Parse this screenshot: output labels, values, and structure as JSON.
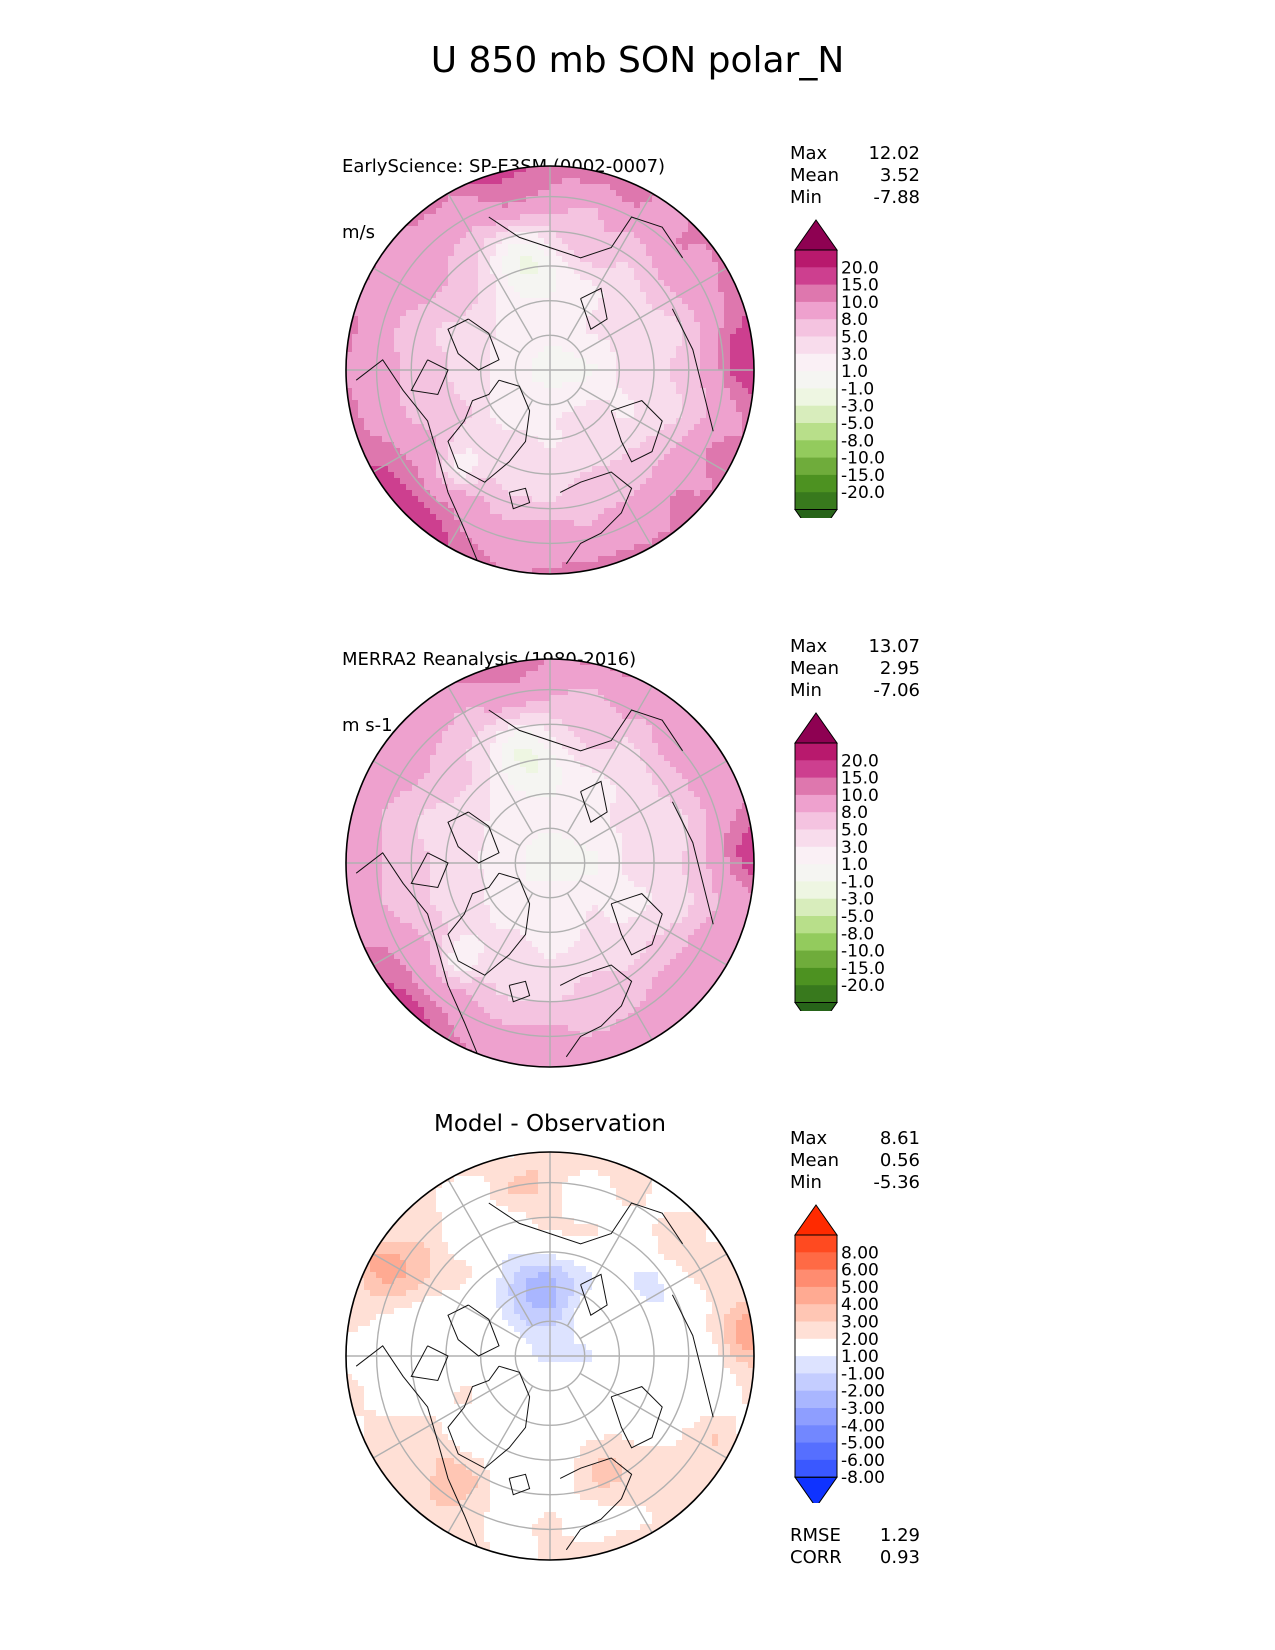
{
  "title": "U 850 mb SON polar_N",
  "panels": [
    {
      "id": "model",
      "title_lines": [
        "EarlyScience: SP-E3SM (0002-0007)",
        "m/s"
      ],
      "centered_title": "",
      "stats": [
        {
          "label": "Max",
          "value": "12.02"
        },
        {
          "label": "Mean",
          "value": "3.52"
        },
        {
          "label": "Min",
          "value": "-7.88"
        }
      ],
      "footer_stats": [],
      "colorbar_labels": [
        "20.0",
        "15.0",
        "10.0",
        "8.0",
        "5.0",
        "3.0",
        "1.0",
        "-1.0",
        "-3.0",
        "-5.0",
        "-8.0",
        "-10.0",
        "-15.0",
        "-20.0"
      ],
      "colorbar_colors": [
        "#8e0152",
        "#b8196d",
        "#cd3f8f",
        "#de77ae",
        "#eea1ce",
        "#f4c3e0",
        "#f8dcec",
        "#faf0f5",
        "#f5f5f2",
        "#eef6e2",
        "#d8edbc",
        "#b8df8a",
        "#93cb5d",
        "#6fac3b",
        "#4d9221",
        "#38791d",
        "#276419"
      ],
      "field_type": "model"
    },
    {
      "id": "obs",
      "title_lines": [
        "MERRA2 Reanalysis (1980-2016)",
        "m s-1"
      ],
      "centered_title": "",
      "stats": [
        {
          "label": "Max",
          "value": "13.07"
        },
        {
          "label": "Mean",
          "value": "2.95"
        },
        {
          "label": "Min",
          "value": "-7.06"
        }
      ],
      "footer_stats": [],
      "colorbar_labels": [
        "20.0",
        "15.0",
        "10.0",
        "8.0",
        "5.0",
        "3.0",
        "1.0",
        "-1.0",
        "-3.0",
        "-5.0",
        "-8.0",
        "-10.0",
        "-15.0",
        "-20.0"
      ],
      "colorbar_colors": [
        "#8e0152",
        "#b8196d",
        "#cd3f8f",
        "#de77ae",
        "#eea1ce",
        "#f4c3e0",
        "#f8dcec",
        "#faf0f5",
        "#f5f5f2",
        "#eef6e2",
        "#d8edbc",
        "#b8df8a",
        "#93cb5d",
        "#6fac3b",
        "#4d9221",
        "#38791d",
        "#276419"
      ],
      "field_type": "obs"
    },
    {
      "id": "diff",
      "title_lines": [],
      "centered_title": "Model - Observation",
      "stats": [
        {
          "label": "Max",
          "value": "8.61"
        },
        {
          "label": "Mean",
          "value": "0.56"
        },
        {
          "label": "Min",
          "value": "-5.36"
        }
      ],
      "footer_stats": [
        {
          "label": "RMSE",
          "value": "1.29"
        },
        {
          "label": "CORR",
          "value": "0.93"
        }
      ],
      "colorbar_labels": [
        "8.00",
        "6.00",
        "5.00",
        "4.00",
        "3.00",
        "2.00",
        "1.00",
        "-1.00",
        "-2.00",
        "-3.00",
        "-4.00",
        "-5.00",
        "-6.00",
        "-8.00"
      ],
      "colorbar_colors": [
        "#ff2a00",
        "#ff4a20",
        "#ff6a45",
        "#ff8c70",
        "#ffaa92",
        "#ffc6b4",
        "#ffe0d6",
        "#ffffff",
        "#dde3ff",
        "#c4cdff",
        "#a9b6ff",
        "#8e9eff",
        "#7287ff",
        "#566fff",
        "#3a58ff",
        "#0f33ff"
      ],
      "field_type": "diff"
    }
  ]
}
